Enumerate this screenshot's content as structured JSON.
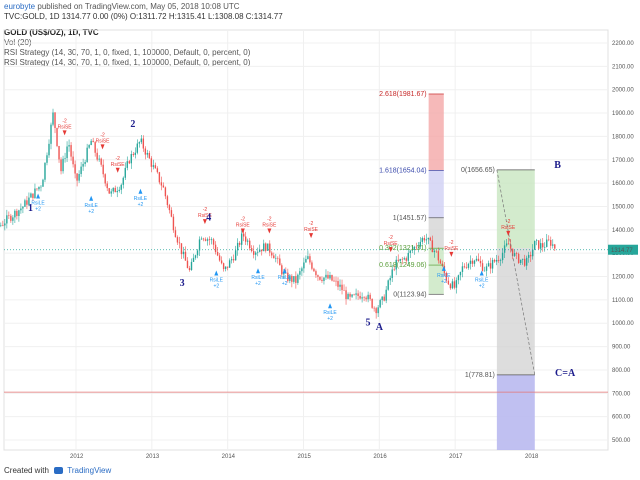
{
  "header": {
    "user": "eurobyte",
    "published": "published on TradingView.com, May 05, 2018 10:08 UTC",
    "symbol_line": "TVC:GOLD, 1D  1314.77  0.00 (0%)  O:1311.72  H:1315.41  L:1308.08  C:1314.77",
    "title": "GOLD (US$/OZ), 1D, TVC",
    "vol": "Vol (20)",
    "strategy1": "RSI Strategy (14, 30, 70, 1, 0, fixed, 1, 100000, Default, 0, percent, 0)",
    "strategy2": "RSI Strategy (14, 30, 70, 1, 0, fixed, 1, 100000, Default, 0, percent, 0)"
  },
  "footer": {
    "created": "Created with",
    "brand": "TradingView"
  },
  "colors": {
    "candle_up": "#26a69a",
    "candle_down": "#ef5350",
    "wave": "#1c1c8c",
    "buy": "#2196f3",
    "sell": "#e53935",
    "red_zone": "#f4a7a7",
    "green_zone": "#c8e6c0",
    "gray_zone": "#d4d4d4",
    "blue_zone": "#b9b9f0"
  },
  "chart_data": {
    "type": "candlestick",
    "y_ticks": [
      "2200.00",
      "2100.00",
      "2000.00",
      "1900.00",
      "1800.00",
      "1700.00",
      "1600.00",
      "1500.00",
      "1400.00",
      "1300.00",
      "1200.00",
      "1100.00",
      "1000.00",
      "900.00",
      "800.00",
      "700.00",
      "600.00",
      "500.00"
    ],
    "ylim": [
      460,
      2240
    ],
    "x_ticks": [
      "2012",
      "2013",
      "2014",
      "2015",
      "2016",
      "2017",
      "2018"
    ],
    "last_price": "1314.77",
    "price_path": [
      [
        2010.4,
        1200
      ],
      [
        2010.8,
        1400
      ],
      [
        2011.0,
        1420
      ],
      [
        2011.3,
        1500
      ],
      [
        2011.55,
        1600
      ],
      [
        2011.7,
        1900
      ],
      [
        2011.8,
        1650
      ],
      [
        2011.9,
        1780
      ],
      [
        2012.0,
        1600
      ],
      [
        2012.2,
        1780
      ],
      [
        2012.35,
        1650
      ],
      [
        2012.45,
        1550
      ],
      [
        2012.6,
        1600
      ],
      [
        2012.7,
        1700
      ],
      [
        2012.85,
        1780
      ],
      [
        2013.0,
        1680
      ],
      [
        2013.15,
        1580
      ],
      [
        2013.3,
        1400
      ],
      [
        2013.4,
        1300
      ],
      [
        2013.5,
        1220
      ],
      [
        2013.65,
        1380
      ],
      [
        2013.8,
        1350
      ],
      [
        2013.95,
        1220
      ],
      [
        2014.1,
        1300
      ],
      [
        2014.2,
        1380
      ],
      [
        2014.35,
        1310
      ],
      [
        2014.5,
        1330
      ],
      [
        2014.6,
        1300
      ],
      [
        2014.75,
        1200
      ],
      [
        2014.9,
        1180
      ],
      [
        2015.05,
        1280
      ],
      [
        2015.2,
        1200
      ],
      [
        2015.35,
        1190
      ],
      [
        2015.5,
        1150
      ],
      [
        2015.6,
        1100
      ],
      [
        2015.8,
        1130
      ],
      [
        2015.95,
        1060
      ],
      [
        2016.05,
        1100
      ],
      [
        2016.2,
        1250
      ],
      [
        2016.35,
        1280
      ],
      [
        2016.5,
        1340
      ],
      [
        2016.6,
        1370
      ],
      [
        2016.75,
        1300
      ],
      [
        2016.9,
        1180
      ],
      [
        2017.0,
        1150
      ],
      [
        2017.1,
        1240
      ],
      [
        2017.25,
        1280
      ],
      [
        2017.4,
        1230
      ],
      [
        2017.5,
        1260
      ],
      [
        2017.6,
        1290
      ],
      [
        2017.7,
        1340
      ],
      [
        2017.8,
        1280
      ],
      [
        2017.95,
        1260
      ],
      [
        2018.05,
        1340
      ],
      [
        2018.15,
        1330
      ],
      [
        2018.25,
        1350
      ],
      [
        2018.34,
        1315
      ]
    ],
    "waves": [
      {
        "label": "1",
        "x": 2011.4,
        "y": 1480
      },
      {
        "label": "2",
        "x": 2012.75,
        "y": 1840
      },
      {
        "label": "3",
        "x": 2013.4,
        "y": 1160
      },
      {
        "label": "4",
        "x": 2013.75,
        "y": 1440
      },
      {
        "label": "5",
        "x": 2015.85,
        "y": 990
      },
      {
        "label": "A",
        "x": 2016.0,
        "y": 970
      },
      {
        "label": "B",
        "x": 2018.35,
        "y": 1665
      },
      {
        "label": "C=A",
        "x": 2018.45,
        "y": 775
      }
    ],
    "signals": [
      {
        "type": "sell",
        "label": "RsiSE",
        "qty": "-2",
        "x": 2011.85,
        "y": 1800
      },
      {
        "type": "sell",
        "label": "RsiSE",
        "qty": "-2",
        "x": 2012.35,
        "y": 1740
      },
      {
        "type": "sell",
        "label": "RsiSE",
        "qty": "-2",
        "x": 2012.55,
        "y": 1640
      },
      {
        "type": "sell",
        "label": "RsiSE",
        "qty": "-2",
        "x": 2013.7,
        "y": 1420
      },
      {
        "type": "sell",
        "label": "RsiSE",
        "qty": "-2",
        "x": 2014.2,
        "y": 1380
      },
      {
        "type": "sell",
        "label": "RsiSE",
        "qty": "-2",
        "x": 2014.55,
        "y": 1380
      },
      {
        "type": "sell",
        "label": "RsiSE",
        "qty": "-2",
        "x": 2015.1,
        "y": 1360
      },
      {
        "type": "sell",
        "label": "RsiSE",
        "qty": "-2",
        "x": 2016.15,
        "y": 1300
      },
      {
        "type": "sell",
        "label": "RsiSE",
        "qty": "-2",
        "x": 2016.95,
        "y": 1280
      },
      {
        "type": "sell",
        "label": "RsiSE",
        "qty": "-2",
        "x": 2017.7,
        "y": 1370
      },
      {
        "type": "buy",
        "label": "RsiLE",
        "qty": "+2",
        "x": 2011.5,
        "y": 1560
      },
      {
        "type": "buy",
        "label": "RsiLE",
        "qty": "+2",
        "x": 2012.2,
        "y": 1550
      },
      {
        "type": "buy",
        "label": "RsiLE",
        "qty": "+2",
        "x": 2012.85,
        "y": 1580
      },
      {
        "type": "buy",
        "label": "RsiLE",
        "qty": "+2",
        "x": 2013.85,
        "y": 1230
      },
      {
        "type": "buy",
        "label": "RsiLE",
        "qty": "+2",
        "x": 2014.4,
        "y": 1240
      },
      {
        "type": "buy",
        "label": "RsiLE",
        "qty": "+2",
        "x": 2014.75,
        "y": 1240
      },
      {
        "type": "buy",
        "label": "RsiLE",
        "qty": "+2",
        "x": 2015.35,
        "y": 1090
      },
      {
        "type": "buy",
        "label": "RsiLE",
        "qty": "+2",
        "x": 2016.85,
        "y": 1250
      },
      {
        "type": "buy",
        "label": "RsiLE",
        "qty": "+2",
        "x": 2017.35,
        "y": 1230
      }
    ],
    "fib_left": {
      "x0": 2016.65,
      "x1": 2016.85,
      "levels": [
        {
          "label": "2.618(1981.67)",
          "value": 1981.67,
          "color": "#c62828"
        },
        {
          "label": "1.618(1654.04)",
          "value": 1654.04,
          "color": "#3949ab"
        },
        {
          "label": "1(1451.57)",
          "value": 1451.57,
          "color": "#555555"
        },
        {
          "label": "0.382(1321.31)",
          "value": 1321.31,
          "color": "#5a9e3a"
        },
        {
          "label": "0.618(1249.06)",
          "value": 1249.06,
          "color": "#5a9e3a"
        },
        {
          "label": "0(1123.94)",
          "value": 1123.94,
          "color": "#555555"
        }
      ]
    },
    "fib_right": {
      "x0": 2017.55,
      "x1": 2018.05,
      "levels": [
        {
          "label": "0(1656.65)",
          "value": 1656.65,
          "color": "#555555"
        },
        {
          "label": "1(778.81)",
          "value": 778.81,
          "color": "#555555"
        }
      ]
    },
    "hlines": [
      {
        "value": 1314.77,
        "color": "#26a69a",
        "style": "dotted"
      },
      {
        "value": 705,
        "color": "#e57373",
        "style": "solid"
      }
    ]
  }
}
